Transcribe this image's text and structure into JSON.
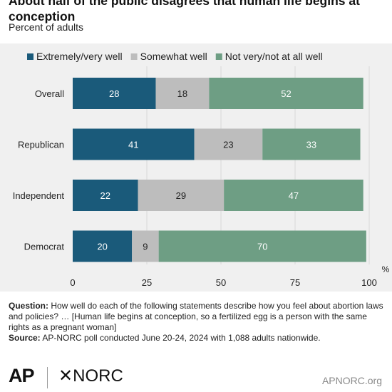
{
  "header": {
    "title": "About half of the public disagrees that human life begins at conception",
    "subtitle": "Percent of adults"
  },
  "chart_data": {
    "type": "bar",
    "orientation": "horizontal",
    "stacked": true,
    "categories": [
      "Overall",
      "Republican",
      "Independent",
      "Democrat"
    ],
    "series": [
      {
        "name": "Extremely/very well",
        "values": [
          28,
          41,
          22,
          20
        ],
        "color": "#1a5a7a"
      },
      {
        "name": "Somewhat well",
        "values": [
          18,
          23,
          29,
          9
        ],
        "color": "#bdbdbd"
      },
      {
        "name": "Not very/not at all well",
        "values": [
          52,
          33,
          47,
          70
        ],
        "color": "#6e9e84"
      }
    ],
    "xlim": [
      0,
      100
    ],
    "xticks": [
      "0",
      "25",
      "50",
      "75",
      "100"
    ],
    "xunit": "%",
    "legend_position": "top",
    "grid": true
  },
  "notes": {
    "question_label": "Question:",
    "question_text": "How well do each of the following statements describe how you feel about abortion laws and policies? … [Human life begins at conception, so a fertilized egg is a person with the same rights as a pregnant woman]",
    "source_label": "Source:",
    "source_text": "AP-NORC poll conducted June 20-24, 2024 with 1,088 adults nationwide."
  },
  "footer": {
    "logo_ap": "AP",
    "logo_norc": "NORC",
    "site": "APNORC.org"
  }
}
